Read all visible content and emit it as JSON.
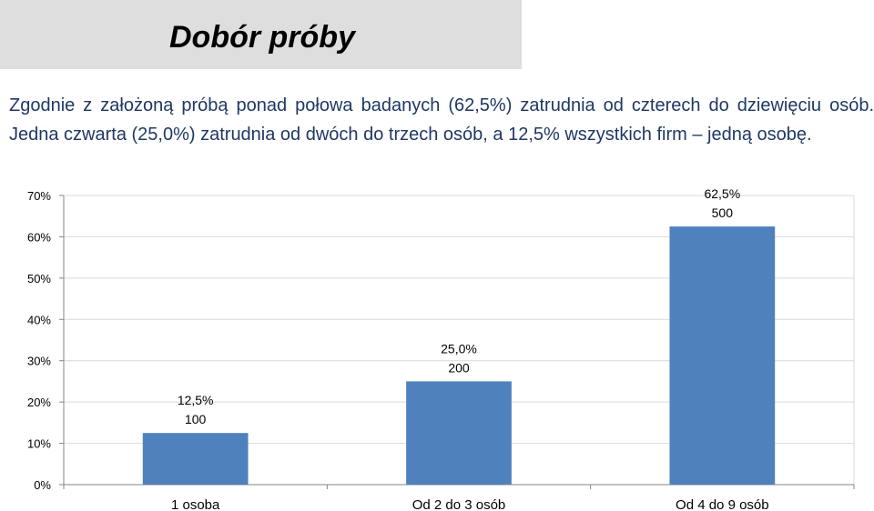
{
  "header": {
    "title": "Dobór próby"
  },
  "description": "Zgodnie z założoną próbą ponad połowa badanych (62,5%) zatrudnia od czterech do dziewięciu osób. Jedna czwarta (25,0%) zatrudnia od dwóch do trzech osób, a 12,5% wszystkich firm – jedną osobę.",
  "chart_data": {
    "type": "bar",
    "categories": [
      "1 osoba",
      "Od 2 do 3 osób",
      "Od 4 do 9 osób"
    ],
    "values": [
      12.5,
      25.0,
      62.5
    ],
    "counts": [
      100,
      200,
      500
    ],
    "data_labels": [
      "12,5%",
      "25,0%",
      "62,5%"
    ],
    "count_labels": [
      "100",
      "200",
      "500"
    ],
    "ylim": [
      0,
      70
    ],
    "yticks": [
      0,
      10,
      20,
      30,
      40,
      50,
      60,
      70
    ],
    "ytick_labels": [
      "0%",
      "10%",
      "20%",
      "30%",
      "40%",
      "50%",
      "60%",
      "70%"
    ],
    "grid": true,
    "bar_color": "#4f81bd",
    "grid_color": "#d9d9d9",
    "axis_color": "#868686"
  }
}
